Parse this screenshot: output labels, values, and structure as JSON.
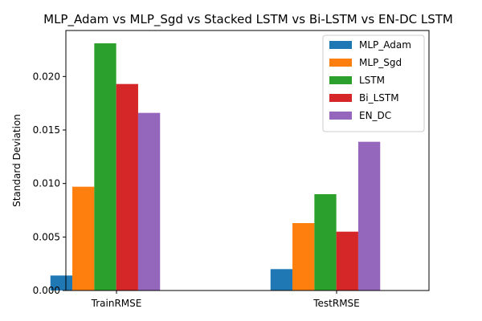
{
  "chart_data": {
    "type": "bar",
    "title": "MLP_Adam vs MLP_Sgd vs Stacked LSTM vs Bi-LSTM vs EN-DC LSTM",
    "xlabel": "",
    "ylabel": "Standard Deviation",
    "categories": [
      "TrainRMSE",
      "TestRMSE"
    ],
    "ylim": [
      0,
      0.0243
    ],
    "yticks": [
      "0.000",
      "0.005",
      "0.010",
      "0.015",
      "0.020"
    ],
    "grid": false,
    "legend": "top-right",
    "series": [
      {
        "name": "MLP_Adam",
        "color": "#1f77b4",
        "values": [
          0.0014,
          0.002
        ]
      },
      {
        "name": "MLP_Sgd",
        "color": "#ff7f0e",
        "values": [
          0.0097,
          0.0063
        ]
      },
      {
        "name": "LSTM",
        "color": "#2ca02c",
        "values": [
          0.0231,
          0.009
        ]
      },
      {
        "name": "Bi_LSTM",
        "color": "#d62728",
        "values": [
          0.0193,
          0.0055
        ]
      },
      {
        "name": "EN_DC",
        "color": "#9467bd",
        "values": [
          0.0166,
          0.0139
        ]
      }
    ]
  }
}
